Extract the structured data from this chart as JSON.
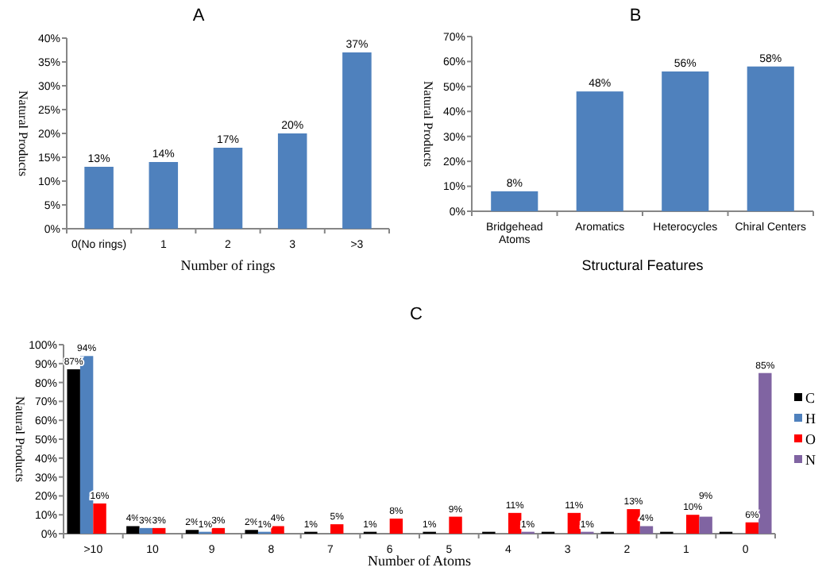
{
  "chart_data": [
    {
      "type": "bar",
      "title": "A",
      "xlabel": "Number of rings",
      "ylabel": "Natural Products",
      "categories": [
        "0(No rings)",
        "1",
        "2",
        "3",
        ">3"
      ],
      "values": [
        13,
        14,
        17,
        20,
        37
      ],
      "value_labels": [
        "13%",
        "14%",
        "17%",
        "20%",
        "37%"
      ],
      "color": "#4f81bd",
      "ylim": [
        0,
        40
      ],
      "yticks": [
        {
          "value": 0,
          "label": "0%"
        },
        {
          "value": 5,
          "label": "5%"
        },
        {
          "value": 10,
          "label": "10%"
        },
        {
          "value": 15,
          "label": "15%"
        },
        {
          "value": 20,
          "label": "20%"
        },
        {
          "value": 25,
          "label": "25%"
        },
        {
          "value": 30,
          "label": "30%"
        },
        {
          "value": 35,
          "label": "35%"
        },
        {
          "value": 40,
          "label": "40%"
        }
      ],
      "grid": false,
      "legend": false
    },
    {
      "type": "bar",
      "title": "B",
      "xlabel": "Structural Features",
      "ylabel": "Natural Products",
      "categories": [
        "Bridgehead Atoms",
        "Aromatics",
        "Heterocycles",
        "Chiral Centers"
      ],
      "values": [
        8,
        48,
        56,
        58
      ],
      "value_labels": [
        "8%",
        "48%",
        "56%",
        "58%"
      ],
      "color": "#4f81bd",
      "ylim": [
        0,
        70
      ],
      "yticks": [
        {
          "value": 0,
          "label": "0%"
        },
        {
          "value": 10,
          "label": "10%"
        },
        {
          "value": 20,
          "label": "20%"
        },
        {
          "value": 30,
          "label": "30%"
        },
        {
          "value": 40,
          "label": "40%"
        },
        {
          "value": 50,
          "label": "50%"
        },
        {
          "value": 60,
          "label": "60%"
        },
        {
          "value": 70,
          "label": "70%"
        }
      ],
      "grid": false,
      "legend": false
    },
    {
      "type": "bar",
      "title": "C",
      "xlabel": "Number of Atoms",
      "ylabel": "Natural Products",
      "categories": [
        ">10",
        "10",
        "9",
        "8",
        "7",
        "6",
        "5",
        "4",
        "3",
        "2",
        "1",
        "0"
      ],
      "series": [
        {
          "name": "C",
          "color": "#000000",
          "values": [
            87,
            4,
            2,
            2,
            1,
            1,
            1,
            1,
            1,
            1,
            1,
            1
          ],
          "value_labels": [
            "87%",
            "4%",
            "2%",
            "2%",
            "1%",
            "1%",
            "1%",
            null,
            null,
            null,
            null,
            null
          ]
        },
        {
          "name": "H",
          "color": "#4f81bd",
          "values": [
            94,
            3,
            1,
            1,
            0,
            0,
            0,
            0,
            0,
            0,
            0,
            0
          ],
          "value_labels": [
            "94%",
            "3%",
            "1%",
            "1%",
            null,
            null,
            null,
            null,
            null,
            null,
            null,
            null
          ]
        },
        {
          "name": "O",
          "color": "#ff0000",
          "values": [
            16,
            3,
            3,
            4,
            5,
            8,
            9,
            11,
            11,
            13,
            10,
            6
          ],
          "value_labels": [
            "16%",
            "3%",
            "3%",
            "4%",
            "5%",
            "8%",
            "9%",
            "11%",
            "11%",
            "13%",
            "10%",
            "6%"
          ]
        },
        {
          "name": "N",
          "color": "#8064a2",
          "values": [
            0,
            0,
            0,
            0,
            0,
            0,
            0,
            1,
            1,
            4,
            9,
            85
          ],
          "value_labels": [
            null,
            null,
            null,
            null,
            null,
            null,
            null,
            "1%",
            "1%",
            "4%",
            "9%",
            "85%"
          ]
        }
      ],
      "ylim": [
        0,
        100
      ],
      "yticks": [
        {
          "value": 0,
          "label": "0%"
        },
        {
          "value": 10,
          "label": "10%"
        },
        {
          "value": 20,
          "label": "20%"
        },
        {
          "value": 30,
          "label": "30%"
        },
        {
          "value": 40,
          "label": "40%"
        },
        {
          "value": 50,
          "label": "50%"
        },
        {
          "value": 60,
          "label": "60%"
        },
        {
          "value": 70,
          "label": "70%"
        },
        {
          "value": 80,
          "label": "80%"
        },
        {
          "value": 90,
          "label": "90%"
        },
        {
          "value": 100,
          "label": "100%"
        }
      ],
      "grid": false,
      "legend": "right"
    }
  ]
}
